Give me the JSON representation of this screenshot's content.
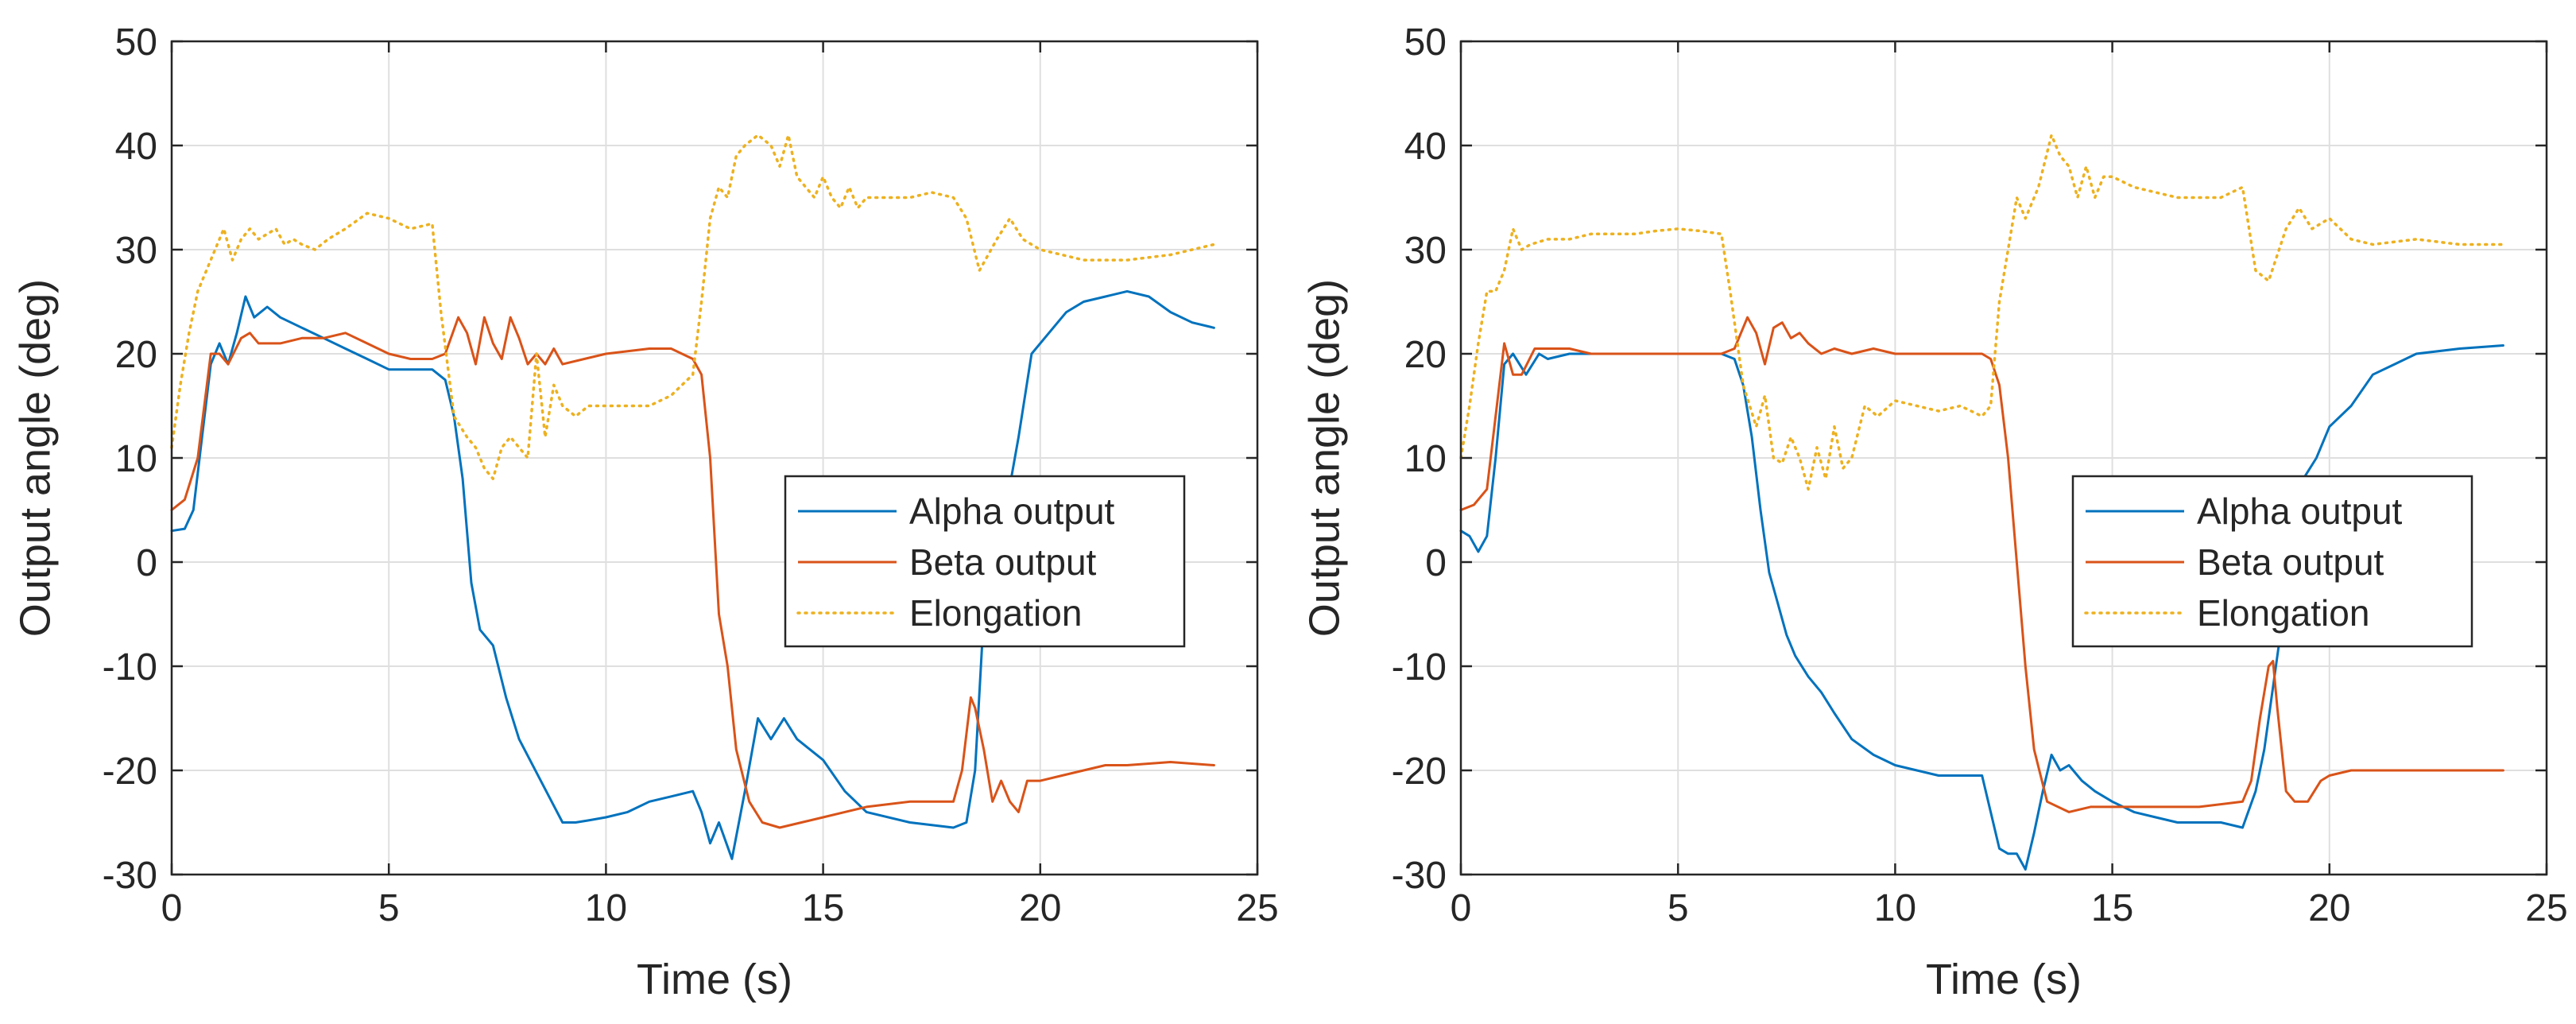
{
  "colors": {
    "alpha": "#0072BD",
    "beta": "#D95319",
    "elongation": "#EDB120",
    "grid": "#DFDFDF",
    "axis": "#262626",
    "background": "#ffffff"
  },
  "chart_data": [
    {
      "type": "line",
      "xlabel": "Time (s)",
      "ylabel": "Output angle (deg)",
      "xlim": [
        0,
        25
      ],
      "ylim": [
        -30,
        50
      ],
      "xticks": [
        0,
        5,
        10,
        15,
        20,
        25
      ],
      "yticks": [
        -30,
        -20,
        -10,
        0,
        10,
        20,
        30,
        40,
        50
      ],
      "grid": true,
      "legend_position": "center-right",
      "series": [
        {
          "name": "Alpha output",
          "style": "solid",
          "color": "#0072BD",
          "x": [
            0,
            0.3,
            0.5,
            0.7,
            0.9,
            1.1,
            1.3,
            1.5,
            1.7,
            1.9,
            2.2,
            2.5,
            3.0,
            3.5,
            4.0,
            4.5,
            5.0,
            5.5,
            6.0,
            6.3,
            6.5,
            6.7,
            6.9,
            7.1,
            7.4,
            7.7,
            8.0,
            8.5,
            9.0,
            9.3,
            9.6,
            10.0,
            10.5,
            11.0,
            11.5,
            12.0,
            12.2,
            12.4,
            12.6,
            12.9,
            13.2,
            13.5,
            13.8,
            14.1,
            14.4,
            14.7,
            15.0,
            15.5,
            16.0,
            17.0,
            18.0,
            18.3,
            18.5,
            18.7,
            18.9,
            19.2,
            19.5,
            19.8,
            20.2,
            20.6,
            21.0,
            21.5,
            22.0,
            22.5,
            23.0,
            23.5,
            24.0
          ],
          "y": [
            3,
            3.2,
            5,
            12,
            19,
            21,
            19,
            22,
            25.5,
            23.5,
            24.5,
            23.5,
            22.5,
            21.5,
            20.5,
            19.5,
            18.5,
            18.5,
            18.5,
            17.5,
            14,
            8,
            -2,
            -6.5,
            -8,
            -13,
            -17,
            -21,
            -25,
            -25,
            -24.8,
            -24.5,
            -24,
            -23,
            -22.5,
            -22,
            -24,
            -27,
            -25,
            -28.5,
            -22,
            -15,
            -17,
            -15,
            -17,
            -18,
            -19,
            -22,
            -24,
            -25,
            -25.5,
            -25,
            -20,
            -5,
            0,
            5,
            12,
            20,
            22,
            24,
            25,
            25.5,
            26,
            25.5,
            24,
            23,
            22.5
          ]
        },
        {
          "name": "Beta output",
          "style": "solid",
          "color": "#D95319",
          "x": [
            0,
            0.3,
            0.6,
            0.9,
            1.1,
            1.3,
            1.6,
            1.8,
            2.0,
            2.5,
            3.0,
            3.5,
            4.0,
            4.5,
            5.0,
            5.5,
            6.0,
            6.3,
            6.6,
            6.8,
            7.0,
            7.2,
            7.4,
            7.6,
            7.8,
            8.0,
            8.2,
            8.4,
            8.6,
            8.8,
            9.0,
            9.5,
            10.0,
            11.0,
            11.5,
            12.0,
            12.2,
            12.4,
            12.6,
            12.8,
            13.0,
            13.3,
            13.6,
            14.0,
            14.5,
            15.0,
            15.5,
            16.0,
            17.0,
            18.0,
            18.2,
            18.4,
            18.5,
            18.7,
            18.9,
            19.1,
            19.3,
            19.5,
            19.7,
            20.0,
            20.5,
            21.0,
            21.5,
            22.0,
            23.0,
            24.0
          ],
          "y": [
            5,
            6,
            10,
            20,
            20,
            19,
            21.5,
            22,
            21,
            21,
            21.5,
            21.5,
            22,
            21,
            20,
            19.5,
            19.5,
            20,
            23.5,
            22,
            19,
            23.5,
            21,
            19.5,
            23.5,
            21.5,
            19,
            20,
            19,
            20.5,
            19,
            19.5,
            20,
            20.5,
            20.5,
            19.5,
            18,
            10,
            -5,
            -10,
            -18,
            -23,
            -25,
            -25.5,
            -25,
            -24.5,
            -24,
            -23.5,
            -23,
            -23,
            -20,
            -13,
            -14,
            -18,
            -23,
            -21,
            -23,
            -24,
            -21,
            -21,
            -20.5,
            -20,
            -19.5,
            -19.5,
            -19.2,
            -19.5
          ]
        },
        {
          "name": "Elongation",
          "style": "dotted",
          "color": "#EDB120",
          "x": [
            0,
            0.2,
            0.4,
            0.6,
            0.8,
            1.0,
            1.2,
            1.4,
            1.6,
            1.8,
            2.0,
            2.2,
            2.4,
            2.6,
            2.8,
            3.0,
            3.3,
            3.6,
            4.0,
            4.5,
            5.0,
            5.5,
            6.0,
            6.2,
            6.5,
            6.8,
            7.0,
            7.2,
            7.4,
            7.6,
            7.8,
            8.0,
            8.2,
            8.4,
            8.6,
            8.8,
            9.0,
            9.3,
            9.6,
            10.0,
            10.5,
            11.0,
            11.5,
            12.0,
            12.2,
            12.4,
            12.6,
            12.8,
            13.0,
            13.2,
            13.5,
            13.8,
            14.0,
            14.2,
            14.4,
            14.6,
            14.8,
            15.0,
            15.2,
            15.4,
            15.6,
            15.8,
            16.0,
            16.5,
            17.0,
            17.5,
            18.0,
            18.3,
            18.6,
            19.0,
            19.3,
            19.6,
            20.0,
            20.5,
            21.0,
            22.0,
            23.0,
            24.0
          ],
          "y": [
            11,
            17,
            22,
            26,
            28,
            30,
            32,
            29,
            31,
            32,
            31,
            31.5,
            32,
            30.5,
            31,
            30.5,
            30,
            31,
            32,
            33.5,
            33,
            32,
            32.5,
            24,
            14,
            12,
            11,
            9,
            8,
            11,
            12,
            11,
            10,
            20,
            12,
            17,
            15,
            14,
            15,
            15,
            15,
            15,
            16,
            18,
            25,
            33,
            36,
            35,
            39,
            40,
            41,
            40,
            38,
            41,
            37,
            36,
            35,
            37,
            35,
            34,
            36,
            34,
            35,
            35,
            35,
            35.5,
            35,
            33,
            28,
            31,
            33,
            31,
            30,
            29.5,
            29,
            29,
            29.5,
            30.5
          ]
        }
      ]
    },
    {
      "type": "line",
      "xlabel": "Time (s)",
      "ylabel": "Output angle (deg)",
      "xlim": [
        0,
        25
      ],
      "ylim": [
        -30,
        50
      ],
      "xticks": [
        0,
        5,
        10,
        15,
        20,
        25
      ],
      "yticks": [
        -30,
        -20,
        -10,
        0,
        10,
        20,
        30,
        40,
        50
      ],
      "grid": true,
      "legend_position": "center-right",
      "series": [
        {
          "name": "Alpha output",
          "style": "solid",
          "color": "#0072BD",
          "x": [
            0,
            0.2,
            0.4,
            0.6,
            0.8,
            1.0,
            1.2,
            1.5,
            1.8,
            2.0,
            2.5,
            3.0,
            3.5,
            4.0,
            4.5,
            5.0,
            5.5,
            6.0,
            6.3,
            6.5,
            6.7,
            6.9,
            7.1,
            7.3,
            7.5,
            7.7,
            8.0,
            8.3,
            8.6,
            9.0,
            9.5,
            10.0,
            10.5,
            11.0,
            11.5,
            12.0,
            12.2,
            12.4,
            12.6,
            12.8,
            13.0,
            13.2,
            13.4,
            13.6,
            13.8,
            14.0,
            14.3,
            14.6,
            15.0,
            15.5,
            16.0,
            16.5,
            17.0,
            17.5,
            18.0,
            18.3,
            18.5,
            18.7,
            18.9,
            19.1,
            19.4,
            19.7,
            20.0,
            20.5,
            21.0,
            21.5,
            22.0,
            23.0,
            24.0
          ],
          "y": [
            3,
            2.5,
            1,
            2.5,
            10,
            19,
            20,
            18,
            20,
            19.5,
            20,
            20,
            20,
            20,
            20,
            20,
            20,
            20,
            19.5,
            17,
            12,
            5,
            -1,
            -4,
            -7,
            -9,
            -11,
            -12.5,
            -14.5,
            -17,
            -18.5,
            -19.5,
            -20,
            -20.5,
            -20.5,
            -20.5,
            -24,
            -27.5,
            -28,
            -28,
            -29.5,
            -26,
            -22,
            -18.5,
            -20,
            -19.5,
            -21,
            -22,
            -23,
            -24,
            -24.5,
            -25,
            -25,
            -25,
            -25.5,
            -22,
            -18,
            -12,
            -6,
            2,
            8,
            10,
            13,
            15,
            18,
            19,
            20,
            20.5,
            20.8
          ]
        },
        {
          "name": "Beta output",
          "style": "solid",
          "color": "#D95319",
          "x": [
            0,
            0.3,
            0.6,
            0.8,
            1.0,
            1.2,
            1.4,
            1.7,
            2.0,
            2.5,
            3.0,
            3.5,
            4.0,
            4.5,
            5.0,
            5.5,
            6.0,
            6.3,
            6.6,
            6.8,
            7.0,
            7.2,
            7.4,
            7.6,
            7.8,
            8.0,
            8.3,
            8.6,
            9.0,
            9.5,
            10.0,
            10.5,
            11.0,
            11.5,
            12.0,
            12.2,
            12.4,
            12.6,
            12.8,
            13.0,
            13.2,
            13.5,
            14.0,
            14.5,
            15.0,
            15.5,
            16.0,
            17.0,
            18.0,
            18.2,
            18.4,
            18.6,
            18.7,
            18.8,
            19.0,
            19.2,
            19.5,
            19.8,
            20.0,
            20.5,
            21.0,
            22.0,
            23.0,
            24.0
          ],
          "y": [
            5,
            5.5,
            7,
            14,
            21,
            18,
            18,
            20.5,
            20.5,
            20.5,
            20,
            20,
            20,
            20,
            20,
            20,
            20,
            20.5,
            23.5,
            22,
            19,
            22.5,
            23,
            21.5,
            22,
            21,
            20,
            20.5,
            20,
            20.5,
            20,
            20,
            20,
            20,
            20,
            19.5,
            17,
            10,
            0,
            -10,
            -18,
            -23,
            -24,
            -23.5,
            -23.5,
            -23.5,
            -23.5,
            -23.5,
            -23,
            -21,
            -15,
            -10,
            -9.5,
            -14,
            -22,
            -23,
            -23,
            -21,
            -20.5,
            -20,
            -20,
            -20,
            -20,
            -20
          ]
        },
        {
          "name": "Elongation",
          "style": "dotted",
          "color": "#EDB120",
          "x": [
            0,
            0.2,
            0.4,
            0.6,
            0.8,
            1.0,
            1.2,
            1.4,
            1.6,
            2.0,
            2.5,
            3.0,
            3.5,
            4.0,
            4.5,
            5.0,
            5.5,
            6.0,
            6.2,
            6.5,
            6.8,
            7.0,
            7.2,
            7.4,
            7.6,
            7.8,
            8.0,
            8.2,
            8.4,
            8.6,
            8.8,
            9.0,
            9.3,
            9.6,
            10.0,
            10.5,
            11.0,
            11.5,
            12.0,
            12.2,
            12.4,
            12.6,
            12.8,
            13.0,
            13.3,
            13.6,
            13.8,
            14.0,
            14.2,
            14.4,
            14.6,
            14.8,
            15.0,
            15.5,
            16.0,
            16.5,
            17.0,
            17.5,
            18.0,
            18.3,
            18.6,
            19.0,
            19.3,
            19.6,
            20.0,
            20.5,
            21.0,
            22.0,
            23.0,
            24.0
          ],
          "y": [
            10,
            15,
            21,
            26,
            26,
            28,
            32,
            30,
            30.5,
            31,
            31,
            31.5,
            31.5,
            31.5,
            31.8,
            32,
            31.8,
            31.5,
            26,
            17,
            13,
            16,
            10,
            9.5,
            12,
            10,
            7,
            11,
            8,
            13,
            9,
            10,
            15,
            14,
            15.5,
            15,
            14.5,
            15,
            14,
            15,
            25,
            30,
            35,
            33,
            36,
            41,
            39,
            38,
            35,
            38,
            35,
            37,
            37,
            36,
            35.5,
            35,
            35,
            35,
            36,
            28,
            27,
            32,
            34,
            32,
            33,
            31,
            30.5,
            31,
            30.5,
            30.5
          ]
        }
      ]
    }
  ]
}
